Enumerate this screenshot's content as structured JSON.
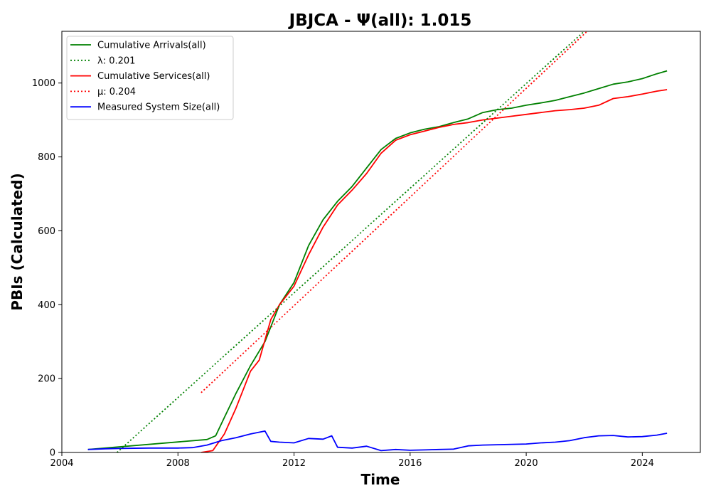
{
  "chart_data": {
    "type": "line",
    "title": "JBJCA -  Ψ(all): 1.015",
    "xlabel": "Time",
    "ylabel": "PBIs (Calculated)",
    "xlim": [
      2004,
      2026
    ],
    "ylim": [
      0,
      1140
    ],
    "x_ticks": [
      "2004",
      "2008",
      "2012",
      "2016",
      "2020",
      "2024"
    ],
    "y_ticks": [
      "0",
      "200",
      "400",
      "600",
      "800",
      "1000"
    ],
    "grid": false,
    "legend_position": "top-left",
    "legend": [
      {
        "label": "Cumulative Arrivals(all)",
        "style": "solid",
        "color": "#008000"
      },
      {
        "label": "λ: 0.201",
        "style": "dotted",
        "color": "#008000"
      },
      {
        "label": "Cumulative Services(all)",
        "style": "solid",
        "color": "#ff0000"
      },
      {
        "label": "μ: 0.204",
        "style": "dotted",
        "color": "#ff0000"
      },
      {
        "label": "Measured System Size(all)",
        "style": "solid",
        "color": "#0000ff"
      }
    ],
    "series": [
      {
        "name": "Cumulative Arrivals(all)",
        "color": "#008000",
        "style": "solid",
        "x": [
          2004.9,
          2009.0,
          2009.3,
          2009.6,
          2010.0,
          2010.5,
          2011.0,
          2011.5,
          2012.0,
          2012.5,
          2013.0,
          2013.5,
          2014.0,
          2014.5,
          2015.0,
          2015.5,
          2016.0,
          2016.5,
          2017.0,
          2017.5,
          2018.0,
          2018.5,
          2019.0,
          2019.5,
          2020.0,
          2020.5,
          2021.0,
          2021.5,
          2022.0,
          2022.5,
          2023.0,
          2023.5,
          2024.0,
          2024.5,
          2024.85
        ],
        "y": [
          8,
          35,
          45,
          95,
          160,
          235,
          300,
          400,
          460,
          560,
          630,
          680,
          720,
          770,
          820,
          850,
          865,
          875,
          882,
          893,
          903,
          920,
          928,
          932,
          940,
          946,
          953,
          963,
          973,
          985,
          997,
          1003,
          1012,
          1025,
          1033
        ]
      },
      {
        "name": "Cumulative Services(all)",
        "color": "#ff0000",
        "style": "solid",
        "x": [
          2008.8,
          2009.2,
          2009.6,
          2010.0,
          2010.5,
          2010.8,
          2011.2,
          2011.5,
          2012.0,
          2012.5,
          2013.0,
          2013.5,
          2014.0,
          2014.5,
          2015.0,
          2015.5,
          2016.0,
          2016.5,
          2017.0,
          2017.5,
          2018.0,
          2018.5,
          2019.0,
          2019.5,
          2020.0,
          2020.5,
          2021.0,
          2021.5,
          2022.0,
          2022.5,
          2023.0,
          2023.5,
          2024.0,
          2024.5,
          2024.85
        ],
        "y": [
          0,
          5,
          50,
          120,
          220,
          250,
          360,
          400,
          450,
          535,
          610,
          670,
          710,
          755,
          810,
          845,
          860,
          870,
          880,
          888,
          893,
          900,
          905,
          910,
          915,
          920,
          925,
          928,
          932,
          940,
          958,
          963,
          970,
          978,
          982
        ]
      },
      {
        "name": "Measured System Size(all)",
        "color": "#0000ff",
        "style": "solid",
        "x": [
          2004.9,
          2005.5,
          2006.0,
          2007.0,
          2008.0,
          2008.5,
          2009.0,
          2009.5,
          2010.0,
          2010.5,
          2011.0,
          2011.2,
          2011.5,
          2012.0,
          2012.5,
          2013.0,
          2013.3,
          2013.5,
          2014.0,
          2014.5,
          2015.0,
          2015.5,
          2016.0,
          2016.5,
          2017.0,
          2017.5,
          2018.0,
          2018.5,
          2019.0,
          2019.5,
          2020.0,
          2020.5,
          2021.0,
          2021.5,
          2022.0,
          2022.5,
          2023.0,
          2023.5,
          2024.0,
          2024.5,
          2024.85
        ],
        "y": [
          8,
          10,
          11,
          12,
          12,
          13,
          20,
          32,
          40,
          50,
          58,
          30,
          28,
          26,
          38,
          36,
          45,
          14,
          12,
          17,
          5,
          8,
          6,
          7,
          8,
          9,
          18,
          20,
          21,
          22,
          23,
          26,
          28,
          32,
          40,
          45,
          46,
          42,
          43,
          47,
          52
        ]
      },
      {
        "name": "λ: 0.201",
        "color": "#008000",
        "style": "dotted",
        "x": [
          2005.9,
          2022.0
        ],
        "y": [
          0,
          1140
        ]
      },
      {
        "name": "μ: 0.204",
        "color": "#ff0000",
        "style": "dotted",
        "x": [
          2008.8,
          2022.1
        ],
        "y": [
          162,
          1140
        ]
      }
    ]
  }
}
